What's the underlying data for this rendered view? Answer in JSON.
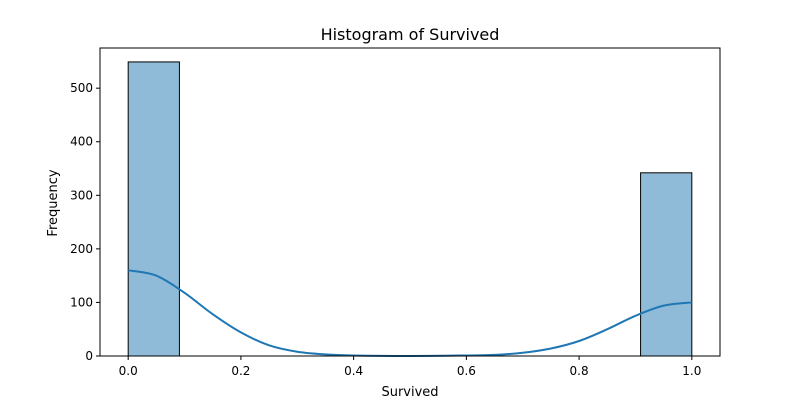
{
  "chart_data": {
    "type": "bar",
    "title": "Histogram of Survived",
    "xlabel": "Survived",
    "ylabel": "Frequency",
    "xlim": [
      -0.05,
      1.05
    ],
    "ylim": [
      0,
      575
    ],
    "x_ticks": [
      0.0,
      0.2,
      0.4,
      0.6,
      0.8,
      1.0
    ],
    "x_tick_labels": [
      "0.0",
      "0.2",
      "0.4",
      "0.6",
      "0.8",
      "1.0"
    ],
    "y_ticks": [
      0,
      100,
      200,
      300,
      400,
      500
    ],
    "y_tick_labels": [
      "0",
      "100",
      "200",
      "300",
      "400",
      "500"
    ],
    "bins": [
      {
        "x0": 0.0,
        "x1": 0.0909,
        "value": 549
      },
      {
        "x0": 0.0909,
        "x1": 0.1818,
        "value": 0
      },
      {
        "x0": 0.1818,
        "x1": 0.2727,
        "value": 0
      },
      {
        "x0": 0.2727,
        "x1": 0.3636,
        "value": 0
      },
      {
        "x0": 0.3636,
        "x1": 0.4545,
        "value": 0
      },
      {
        "x0": 0.4545,
        "x1": 0.5455,
        "value": 0
      },
      {
        "x0": 0.5455,
        "x1": 0.6364,
        "value": 0
      },
      {
        "x0": 0.6364,
        "x1": 0.7273,
        "value": 0
      },
      {
        "x0": 0.7273,
        "x1": 0.8182,
        "value": 0
      },
      {
        "x0": 0.8182,
        "x1": 0.9091,
        "value": 0
      },
      {
        "x0": 0.9091,
        "x1": 1.0,
        "value": 342
      }
    ],
    "kde": {
      "x": [
        0.0,
        0.05,
        0.1,
        0.15,
        0.2,
        0.25,
        0.3,
        0.35,
        0.4,
        0.5,
        0.6,
        0.65,
        0.7,
        0.75,
        0.8,
        0.85,
        0.9,
        0.95,
        1.0
      ],
      "y": [
        160,
        150,
        118,
        78,
        44,
        20,
        8,
        3,
        1,
        0,
        1,
        2,
        6,
        14,
        28,
        50,
        75,
        94,
        100
      ]
    },
    "grid": false,
    "legend": "none",
    "colors": {
      "bar_fill": "#8fbbd9",
      "bar_edge": "#000000",
      "kde_line": "#1f77b4",
      "axes": "#000000"
    }
  }
}
